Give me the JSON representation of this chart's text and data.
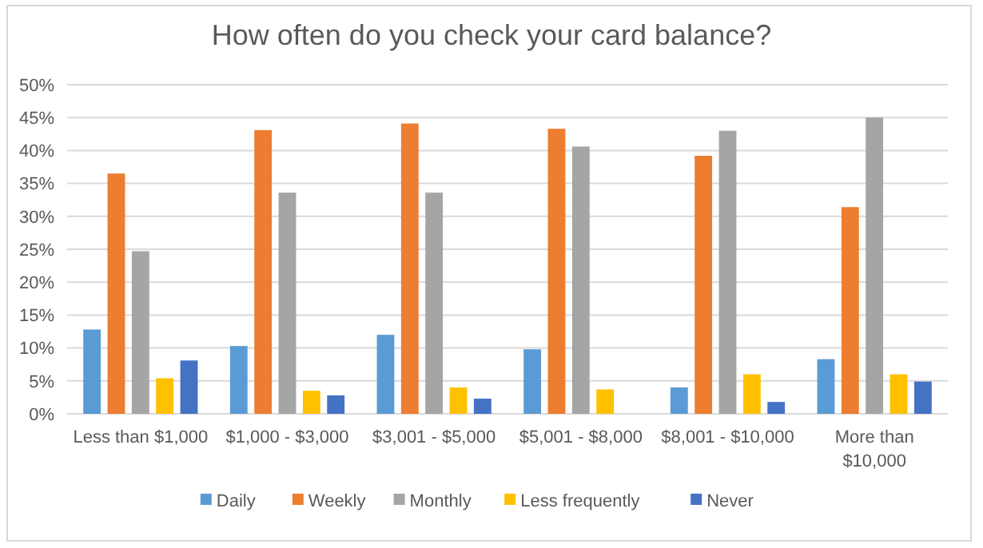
{
  "chart_data": {
    "type": "bar",
    "title": "How often do you check your card balance?",
    "categories": [
      "Less than $1,000",
      "$1,000 - $3,000",
      "$3,001 - $5,000",
      "$5,001 - $8,000",
      "$8,001 - $10,000",
      "More than $10,000"
    ],
    "series": [
      {
        "name": "Daily",
        "color": "#5b9bd5",
        "values": [
          12.8,
          10.3,
          12.0,
          9.8,
          4.0,
          8.3
        ]
      },
      {
        "name": "Weekly",
        "color": "#ed7d31",
        "values": [
          36.5,
          43.1,
          44.1,
          43.3,
          39.2,
          31.4
        ]
      },
      {
        "name": "Monthly",
        "color": "#a5a5a5",
        "values": [
          24.7,
          33.6,
          33.6,
          40.6,
          43.0,
          45.0
        ]
      },
      {
        "name": "Less frequently",
        "color": "#ffc000",
        "values": [
          5.4,
          3.5,
          4.0,
          3.7,
          6.0,
          6.0
        ]
      },
      {
        "name": "Never",
        "color": "#4472c4",
        "values": [
          8.1,
          2.8,
          2.3,
          null,
          1.8,
          4.9
        ]
      }
    ],
    "ylim": [
      0,
      50
    ],
    "yticks": [
      {
        "value": 0,
        "label": "0%"
      },
      {
        "value": 5,
        "label": "5%"
      },
      {
        "value": 10,
        "label": "10%"
      },
      {
        "value": 15,
        "label": "15%"
      },
      {
        "value": 20,
        "label": "20%"
      },
      {
        "value": 25,
        "label": "25%"
      },
      {
        "value": 30,
        "label": "30%"
      },
      {
        "value": 35,
        "label": "35%"
      },
      {
        "value": 40,
        "label": "40%"
      },
      {
        "value": 45,
        "label": "45%"
      },
      {
        "value": 50,
        "label": "50%"
      }
    ],
    "grid": "y",
    "legend": "bottom"
  }
}
